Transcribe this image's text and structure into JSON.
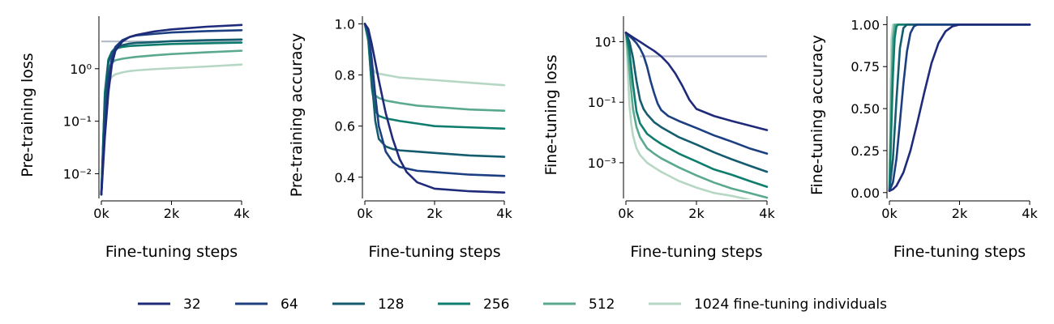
{
  "legend": {
    "placement": "bottom",
    "entries": [
      "32",
      "64",
      "128",
      "256",
      "512",
      "1024 fine-tuning individuals"
    ],
    "colors": [
      "#1f2b7a",
      "#1c3f82",
      "#145c6e",
      "#0f7d6e",
      "#5aa890",
      "#b6d7c3"
    ]
  },
  "colors": {
    "reference_line": "#b3bac8",
    "axis": "#000000"
  },
  "chart_data": [
    {
      "type": "line",
      "ylabel": "Pre-training loss",
      "xlabel": "Fine-tuning steps",
      "yscale": "log",
      "xlim": [
        0,
        4000
      ],
      "ylim": [
        0.0035,
        10
      ],
      "xticks": [
        0,
        2000,
        4000
      ],
      "xticklabels": [
        "0k",
        "2k",
        "4k"
      ],
      "yticks": [
        0.01,
        0.1,
        1
      ],
      "yticklabels": [
        "10⁻²",
        "10⁻¹",
        "10⁰"
      ],
      "reference_line": {
        "y": 3.3,
        "x_start": 0
      },
      "grid": false,
      "series": [
        {
          "name": "32",
          "x": [
            0,
            100,
            200,
            300,
            400,
            600,
            800,
            1000,
            1500,
            2000,
            3000,
            4000
          ],
          "y": [
            0.004,
            0.05,
            0.35,
            1.2,
            2.2,
            3.3,
            4.0,
            4.4,
            5.1,
            5.6,
            6.3,
            6.8
          ]
        },
        {
          "name": "64",
          "x": [
            0,
            100,
            200,
            300,
            400,
            600,
            800,
            1000,
            1500,
            2000,
            3000,
            4000
          ],
          "y": [
            0.004,
            0.08,
            0.6,
            1.6,
            2.6,
            3.5,
            4.0,
            4.3,
            4.6,
            4.9,
            5.2,
            5.4
          ]
        },
        {
          "name": "128",
          "x": [
            0,
            100,
            200,
            300,
            400,
            600,
            800,
            1000,
            1500,
            2000,
            3000,
            4000
          ],
          "y": [
            0.004,
            0.25,
            1.3,
            2.1,
            2.5,
            2.8,
            3.0,
            3.1,
            3.2,
            3.35,
            3.5,
            3.6
          ]
        },
        {
          "name": "256",
          "x": [
            0,
            100,
            200,
            300,
            400,
            600,
            800,
            1000,
            1500,
            2000,
            3000,
            4000
          ],
          "y": [
            0.004,
            0.35,
            1.5,
            2.1,
            2.4,
            2.6,
            2.7,
            2.75,
            2.85,
            2.95,
            3.05,
            3.15
          ]
        },
        {
          "name": "512",
          "x": [
            0,
            100,
            200,
            300,
            400,
            600,
            800,
            1000,
            1500,
            2000,
            3000,
            4000
          ],
          "y": [
            0.004,
            0.3,
            1.0,
            1.3,
            1.45,
            1.55,
            1.62,
            1.68,
            1.8,
            1.9,
            2.05,
            2.2
          ]
        },
        {
          "name": "1024 fine-tuning individuals",
          "x": [
            0,
            100,
            200,
            300,
            400,
            600,
            800,
            1000,
            1500,
            2000,
            3000,
            4000
          ],
          "y": [
            0.004,
            0.25,
            0.55,
            0.7,
            0.78,
            0.85,
            0.9,
            0.93,
            0.98,
            1.02,
            1.1,
            1.2
          ]
        }
      ]
    },
    {
      "type": "line",
      "ylabel": "Pre-training accuracy",
      "xlabel": "Fine-tuning steps",
      "yscale": "linear",
      "xlim": [
        0,
        4000
      ],
      "ylim": [
        0.32,
        1.03
      ],
      "xticks": [
        0,
        2000,
        4000
      ],
      "xticklabels": [
        "0k",
        "2k",
        "4k"
      ],
      "yticks": [
        0.4,
        0.6,
        0.8,
        1.0
      ],
      "yticklabels": [
        "0.4",
        "0.6",
        "0.8",
        "1.0"
      ],
      "grid": false,
      "series": [
        {
          "name": "32",
          "x": [
            0,
            100,
            200,
            300,
            400,
            600,
            800,
            1000,
            1200,
            1500,
            2000,
            3000,
            4000
          ],
          "y": [
            1.0,
            0.98,
            0.92,
            0.85,
            0.78,
            0.65,
            0.55,
            0.47,
            0.42,
            0.38,
            0.355,
            0.345,
            0.34
          ]
        },
        {
          "name": "64",
          "x": [
            0,
            100,
            200,
            300,
            400,
            600,
            800,
            1000,
            1500,
            2000,
            3000,
            4000
          ],
          "y": [
            1.0,
            0.97,
            0.86,
            0.72,
            0.6,
            0.5,
            0.46,
            0.44,
            0.425,
            0.42,
            0.41,
            0.405
          ]
        },
        {
          "name": "128",
          "x": [
            0,
            100,
            200,
            300,
            400,
            600,
            800,
            1000,
            1500,
            2000,
            3000,
            4000
          ],
          "y": [
            1.0,
            0.95,
            0.78,
            0.62,
            0.55,
            0.52,
            0.51,
            0.505,
            0.5,
            0.495,
            0.485,
            0.48
          ]
        },
        {
          "name": "256",
          "x": [
            0,
            100,
            200,
            300,
            400,
            600,
            800,
            1000,
            1500,
            2000,
            3000,
            4000
          ],
          "y": [
            1.0,
            0.94,
            0.75,
            0.66,
            0.64,
            0.63,
            0.625,
            0.62,
            0.61,
            0.6,
            0.595,
            0.59
          ]
        },
        {
          "name": "512",
          "x": [
            0,
            100,
            200,
            300,
            400,
            600,
            800,
            1000,
            1500,
            2000,
            3000,
            4000
          ],
          "y": [
            1.0,
            0.93,
            0.76,
            0.72,
            0.71,
            0.7,
            0.695,
            0.69,
            0.68,
            0.675,
            0.665,
            0.66
          ]
        },
        {
          "name": "1024 fine-tuning individuals",
          "x": [
            0,
            100,
            200,
            300,
            400,
            600,
            800,
            1000,
            1500,
            2000,
            3000,
            4000
          ],
          "y": [
            1.0,
            0.93,
            0.83,
            0.81,
            0.805,
            0.8,
            0.795,
            0.79,
            0.785,
            0.78,
            0.77,
            0.76
          ]
        }
      ]
    },
    {
      "type": "line",
      "ylabel": "Fine-tuning loss",
      "xlabel": "Fine-tuning steps",
      "yscale": "log",
      "xlim": [
        0,
        4000
      ],
      "ylim": [
        7e-05,
        70
      ],
      "xticks": [
        0,
        2000,
        4000
      ],
      "xticklabels": [
        "0k",
        "2k",
        "4k"
      ],
      "yticks": [
        0.001,
        0.1,
        10
      ],
      "yticklabels": [
        "10⁻³",
        "10⁻¹",
        "10¹"
      ],
      "reference_line": {
        "y": 3.3,
        "x_start": 400
      },
      "grid": false,
      "series": [
        {
          "name": "32",
          "x": [
            0,
            200,
            400,
            600,
            800,
            1000,
            1200,
            1400,
            1600,
            1800,
            2000,
            2500,
            3000,
            3500,
            4000
          ],
          "y": [
            20,
            14,
            10,
            7,
            5,
            3.3,
            1.9,
            0.9,
            0.35,
            0.12,
            0.06,
            0.035,
            0.024,
            0.017,
            0.012
          ]
        },
        {
          "name": "64",
          "x": [
            0,
            200,
            300,
            400,
            500,
            600,
            700,
            800,
            900,
            1000,
            1200,
            1500,
            2000,
            2500,
            3000,
            3500,
            4000
          ],
          "y": [
            20,
            12,
            9,
            6,
            3.5,
            1.5,
            0.5,
            0.2,
            0.09,
            0.055,
            0.035,
            0.024,
            0.014,
            0.008,
            0.005,
            0.003,
            0.002
          ]
        },
        {
          "name": "128",
          "x": [
            0,
            100,
            200,
            300,
            400,
            500,
            600,
            800,
            1000,
            1500,
            2000,
            2500,
            3000,
            3500,
            4000
          ],
          "y": [
            20,
            10,
            3,
            0.5,
            0.12,
            0.06,
            0.04,
            0.022,
            0.015,
            0.007,
            0.004,
            0.0022,
            0.0013,
            0.0008,
            0.0005
          ]
        },
        {
          "name": "256",
          "x": [
            0,
            100,
            200,
            300,
            400,
            600,
            800,
            1000,
            1500,
            2000,
            2500,
            3000,
            3500,
            4000
          ],
          "y": [
            20,
            5,
            0.4,
            0.05,
            0.02,
            0.009,
            0.006,
            0.0042,
            0.002,
            0.0011,
            0.0006,
            0.0004,
            0.00025,
            0.00016
          ]
        },
        {
          "name": "512",
          "x": [
            0,
            50,
            100,
            150,
            200,
            300,
            400,
            600,
            800,
            1000,
            1500,
            2000,
            2500,
            3000,
            3500,
            4000
          ],
          "y": [
            20,
            6,
            1.2,
            0.25,
            0.06,
            0.015,
            0.007,
            0.003,
            0.002,
            0.0014,
            0.0007,
            0.00038,
            0.00022,
            0.00014,
            0.0001,
            7e-05
          ]
        },
        {
          "name": "1024 fine-tuning individuals",
          "x": [
            0,
            30,
            60,
            100,
            150,
            200,
            300,
            400,
            600,
            800,
            1000,
            1500,
            2000,
            2500,
            3000,
            3500,
            4000
          ],
          "y": [
            20,
            5,
            0.8,
            0.08,
            0.02,
            0.008,
            0.003,
            0.0018,
            0.001,
            0.0007,
            0.0005,
            0.00025,
            0.00015,
            0.0001,
            8e-05,
            6e-05,
            4e-05
          ]
        }
      ]
    },
    {
      "type": "line",
      "ylabel": "Fine-tuning accuracy",
      "xlabel": "Fine-tuning steps",
      "yscale": "linear",
      "xlim": [
        0,
        4000
      ],
      "ylim": [
        -0.03,
        1.05
      ],
      "xticks": [
        0,
        2000,
        4000
      ],
      "xticklabels": [
        "0k",
        "2k",
        "4k"
      ],
      "yticks": [
        0.0,
        0.25,
        0.5,
        0.75,
        1.0
      ],
      "yticklabels": [
        "0.00",
        "0.25",
        "0.50",
        "0.75",
        "1.00"
      ],
      "grid": false,
      "series": [
        {
          "name": "32",
          "x": [
            0,
            100,
            200,
            400,
            600,
            800,
            1000,
            1200,
            1400,
            1600,
            1800,
            2000,
            2500,
            3000,
            4000
          ],
          "y": [
            0.01,
            0.02,
            0.04,
            0.12,
            0.25,
            0.42,
            0.6,
            0.77,
            0.89,
            0.96,
            0.99,
            1.0,
            1.0,
            1.0,
            1.0
          ]
        },
        {
          "name": "64",
          "x": [
            0,
            100,
            200,
            300,
            400,
            500,
            600,
            700,
            800,
            900,
            1000,
            1500,
            2000,
            3000,
            4000
          ],
          "y": [
            0.01,
            0.06,
            0.2,
            0.42,
            0.65,
            0.84,
            0.95,
            0.99,
            1.0,
            1.0,
            1.0,
            1.0,
            1.0,
            1.0,
            1.0
          ]
        },
        {
          "name": "128",
          "x": [
            0,
            100,
            200,
            300,
            400,
            500,
            600,
            1000,
            2000,
            3000,
            4000
          ],
          "y": [
            0.01,
            0.2,
            0.55,
            0.86,
            0.98,
            1.0,
            1.0,
            1.0,
            1.0,
            1.0,
            1.0
          ]
        },
        {
          "name": "256",
          "x": [
            0,
            50,
            100,
            150,
            200,
            250,
            300,
            600,
            1000,
            2000,
            4000
          ],
          "y": [
            0.01,
            0.35,
            0.7,
            0.92,
            0.99,
            1.0,
            1.0,
            1.0,
            1.0,
            1.0,
            1.0
          ]
        },
        {
          "name": "512",
          "x": [
            0,
            50,
            100,
            150,
            200,
            500,
            1000,
            2000,
            4000
          ],
          "y": [
            0.01,
            0.55,
            0.92,
            1.0,
            1.0,
            1.0,
            1.0,
            1.0,
            1.0
          ]
        },
        {
          "name": "1024 fine-tuning individuals",
          "x": [
            0,
            30,
            60,
            100,
            150,
            500,
            1000,
            2000,
            4000
          ],
          "y": [
            0.01,
            0.6,
            0.92,
            1.0,
            1.0,
            1.0,
            1.0,
            1.0,
            1.0
          ]
        }
      ]
    }
  ]
}
